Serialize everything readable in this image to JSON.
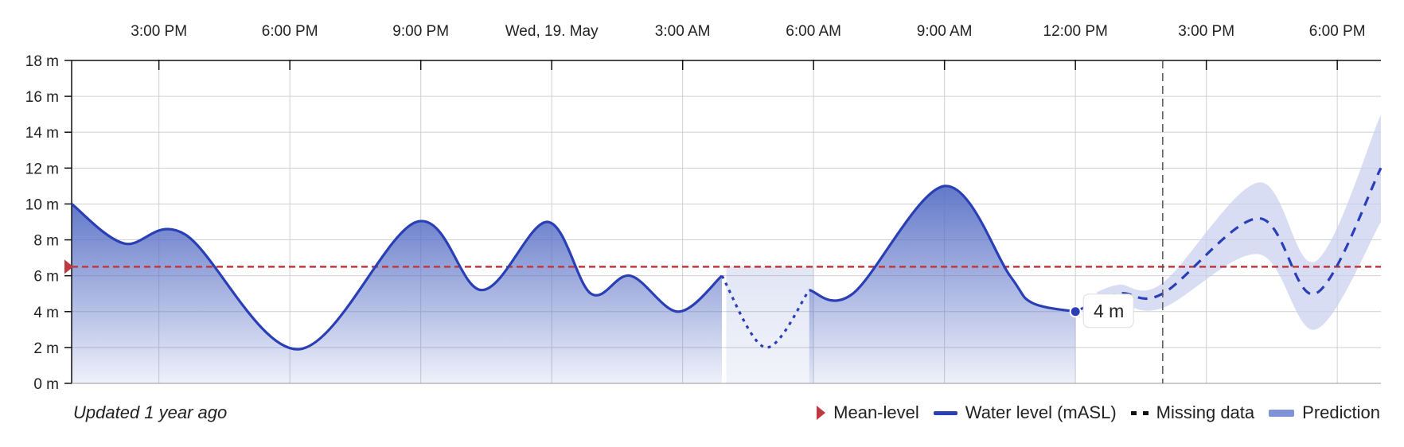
{
  "chart_data": {
    "type": "area",
    "x_axis": {
      "ticks": [
        {
          "label": "3:00 PM",
          "hour": 3
        },
        {
          "label": "6:00 PM",
          "hour": 6
        },
        {
          "label": "9:00 PM",
          "hour": 9
        },
        {
          "label": "Wed, 19. May",
          "hour": 12
        },
        {
          "label": "3:00 AM",
          "hour": 15
        },
        {
          "label": "6:00 AM",
          "hour": 18
        },
        {
          "label": "9:00 AM",
          "hour": 21
        },
        {
          "label": "12:00 PM",
          "hour": 24
        },
        {
          "label": "3:00 PM",
          "hour": 27
        },
        {
          "label": "6:00 PM",
          "hour": 30
        }
      ],
      "range_hours": [
        1,
        31
      ]
    },
    "y_axis": {
      "ticks": [
        "0 m",
        "2 m",
        "4 m",
        "6 m",
        "8 m",
        "10 m",
        "12 m",
        "14 m",
        "16 m",
        "18 m"
      ],
      "tick_values": [
        0,
        2,
        4,
        6,
        8,
        10,
        12,
        14,
        16,
        18
      ],
      "ylim": [
        0,
        18
      ]
    },
    "mean_level": 6.5,
    "series": [
      {
        "name": "Water level (mASL)",
        "points": [
          [
            1,
            10
          ],
          [
            2.2,
            7.8
          ],
          [
            3.6,
            8.3
          ],
          [
            6.2,
            1.9
          ],
          [
            8.9,
            9
          ],
          [
            10.4,
            5.2
          ],
          [
            11.9,
            9
          ],
          [
            12.9,
            5
          ],
          [
            13.8,
            6
          ],
          [
            14.9,
            4
          ],
          [
            15.9,
            6
          ]
        ]
      },
      {
        "name": "Missing data",
        "points": [
          [
            15.9,
            6
          ],
          [
            16.9,
            2
          ],
          [
            17.9,
            5.2
          ],
          [
            18.9,
            5
          ],
          [
            21,
            11
          ],
          [
            22.5,
            6
          ],
          [
            23,
            4.5
          ],
          [
            24,
            4
          ]
        ]
      },
      {
        "name": "Prediction",
        "points": [
          [
            24,
            4
          ],
          [
            25,
            5
          ],
          [
            26,
            5
          ],
          [
            28.2,
            9.2
          ],
          [
            29.5,
            5
          ],
          [
            31,
            12
          ]
        ],
        "band_upper": [
          [
            24.5,
            5.1
          ],
          [
            25,
            5.5
          ],
          [
            26,
            5.6
          ],
          [
            28.2,
            11.2
          ],
          [
            29.5,
            6.8
          ],
          [
            31,
            15
          ]
        ],
        "band_lower": [
          [
            24.5,
            4.5
          ],
          [
            25,
            4.5
          ],
          [
            26,
            4.2
          ],
          [
            28.2,
            7.2
          ],
          [
            29.5,
            3
          ],
          [
            31,
            9
          ]
        ]
      }
    ],
    "missing_span_hours": [
      16,
      18
    ],
    "now_marker_hour": 26,
    "current_point": {
      "hour": 24,
      "value": 4,
      "label": "4 m"
    }
  },
  "footer": {
    "updated_text": "Updated 1 year ago",
    "legend": [
      "Mean-level",
      "Water level (mASL)",
      "Missing data",
      "Prediction"
    ]
  },
  "colors": {
    "line": "#2a3fb6",
    "fill_top": "#5b72c7",
    "mean": "#c0393f",
    "prediction_band": "#c7cfee",
    "prediction_legend": "#7f93d8",
    "grid": "#d0d0d0"
  }
}
